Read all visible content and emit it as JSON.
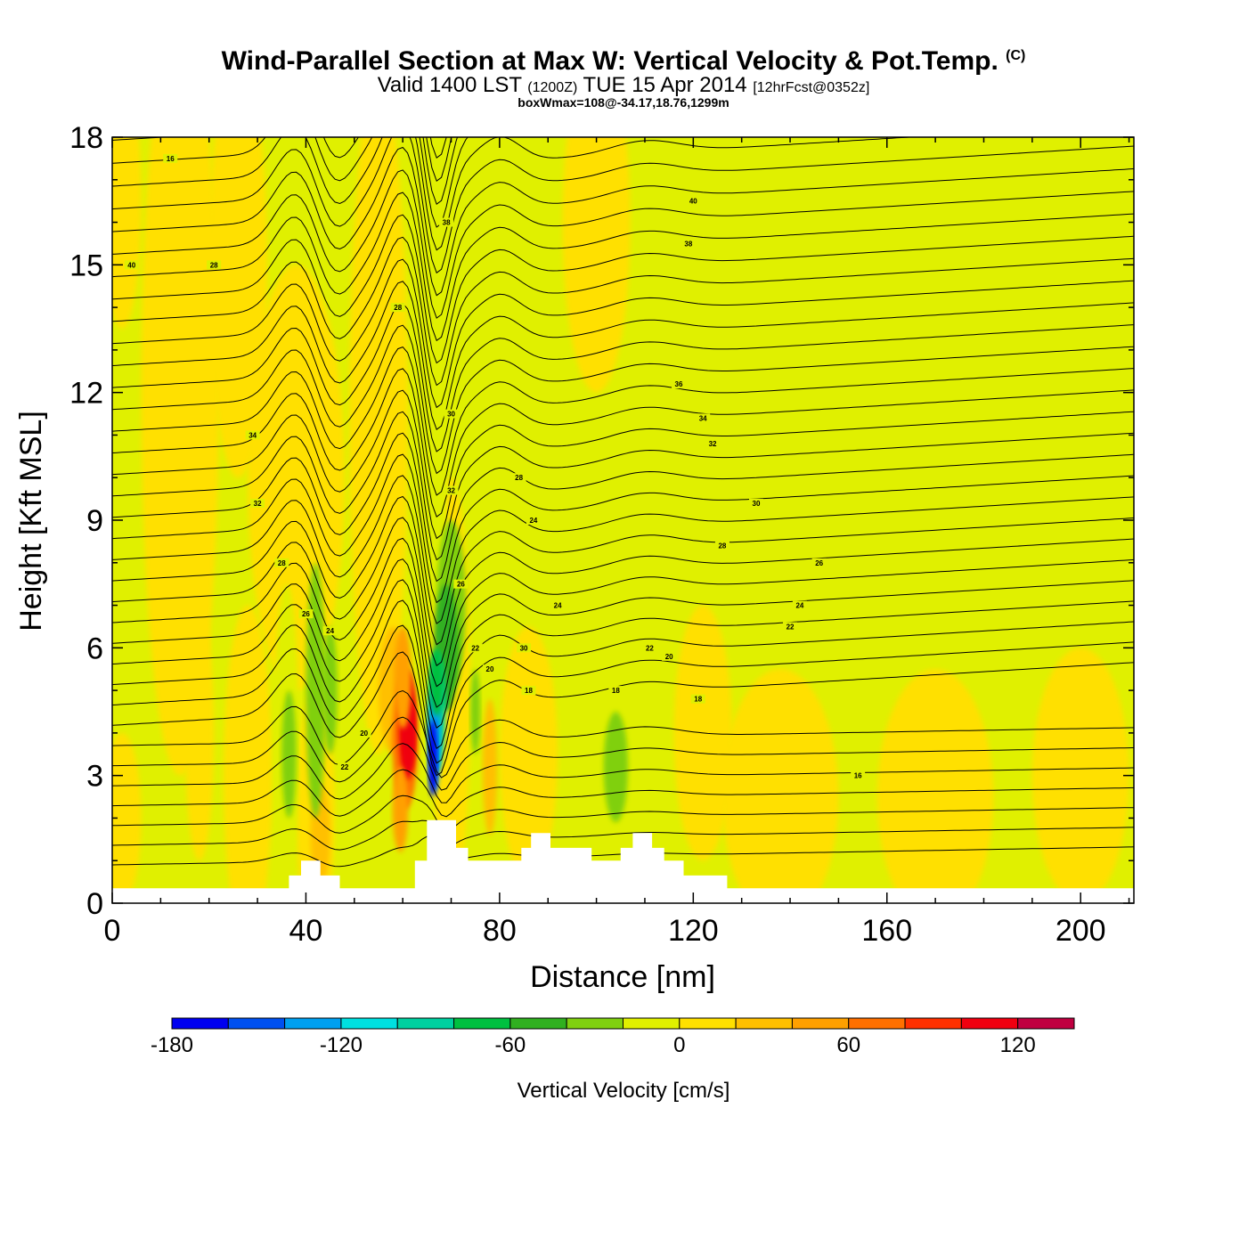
{
  "header": {
    "title": "Wind-Parallel Section at Max W: Vertical Velocity & Pot.Temp.",
    "copyright": "(C)",
    "valid_prefix": "Valid 1400 LST",
    "valid_utc": "(1200Z)",
    "valid_date": "TUE 15 Apr 2014",
    "forecast": "[12hrFcst@0352z]",
    "boxwmax": "boxWmax=108@-34.17,18.76,1299m"
  },
  "colors": {
    "background_field": "#e0f000",
    "contour": "#000000",
    "terrain": "#ffffff"
  },
  "chart_data": {
    "type": "heatmap",
    "title": "Wind-Parallel Section at Max W: Vertical Velocity & Pot.Temp.",
    "xlabel": "Distance [nm]",
    "ylabel": "Height [Kft MSL]",
    "xlim": [
      0,
      211
    ],
    "ylim": [
      0,
      18
    ],
    "x_ticks": [
      "0",
      "40",
      "80",
      "120",
      "160",
      "200"
    ],
    "y_ticks": [
      "0",
      "3",
      "6",
      "9",
      "12",
      "15",
      "18"
    ],
    "colorbar": {
      "label": "Vertical Velocity [cm/s]",
      "bounds": [
        -180,
        -160,
        -140,
        -120,
        -100,
        -80,
        -60,
        -40,
        -20,
        0,
        20,
        40,
        60,
        80,
        100,
        120,
        140
      ],
      "colors": [
        "#0000f0",
        "#0050f0",
        "#00a0f0",
        "#00e0e0",
        "#00d0a0",
        "#00c040",
        "#30b020",
        "#80d010",
        "#e0f000",
        "#ffe000",
        "#ffc000",
        "#ffa000",
        "#ff7000",
        "#ff3000",
        "#f00010",
        "#c00040"
      ],
      "tick_labels": [
        "-180",
        "-120",
        "-60",
        "0",
        "60",
        "120"
      ]
    },
    "theta_contour_labels": [
      "16",
      "18",
      "20",
      "22",
      "24",
      "26",
      "28",
      "30",
      "32",
      "34",
      "36",
      "38",
      "40"
    ],
    "features": [
      {
        "name": "updraft max",
        "x": 61,
        "y": 4.0,
        "value": 108
      },
      {
        "name": "downdraft min",
        "x": 66,
        "y": 3.8,
        "value": -180
      }
    ],
    "terrain_kft": [
      [
        0,
        0.35
      ],
      [
        36.5,
        0.35
      ],
      [
        36.5,
        0.65
      ],
      [
        39,
        0.65
      ],
      [
        39,
        1.0
      ],
      [
        43,
        1.0
      ],
      [
        43,
        0.65
      ],
      [
        47,
        0.65
      ],
      [
        47,
        0.35
      ],
      [
        62.5,
        0.35
      ],
      [
        62.5,
        1.0
      ],
      [
        65,
        1.0
      ],
      [
        65,
        1.95
      ],
      [
        71,
        1.95
      ],
      [
        71,
        1.3
      ],
      [
        73.5,
        1.3
      ],
      [
        73.5,
        1.0
      ],
      [
        84.5,
        1.0
      ],
      [
        84.5,
        1.3
      ],
      [
        86.5,
        1.3
      ],
      [
        86.5,
        1.65
      ],
      [
        90.5,
        1.65
      ],
      [
        90.5,
        1.3
      ],
      [
        99,
        1.3
      ],
      [
        99,
        1.0
      ],
      [
        105,
        1.0
      ],
      [
        105,
        1.3
      ],
      [
        107.5,
        1.3
      ],
      [
        107.5,
        1.65
      ],
      [
        111.5,
        1.65
      ],
      [
        111.5,
        1.3
      ],
      [
        114,
        1.3
      ],
      [
        114,
        1.0
      ],
      [
        118,
        1.0
      ],
      [
        118,
        0.65
      ],
      [
        127,
        0.65
      ],
      [
        127,
        0.35
      ],
      [
        211,
        0.35
      ]
    ]
  }
}
